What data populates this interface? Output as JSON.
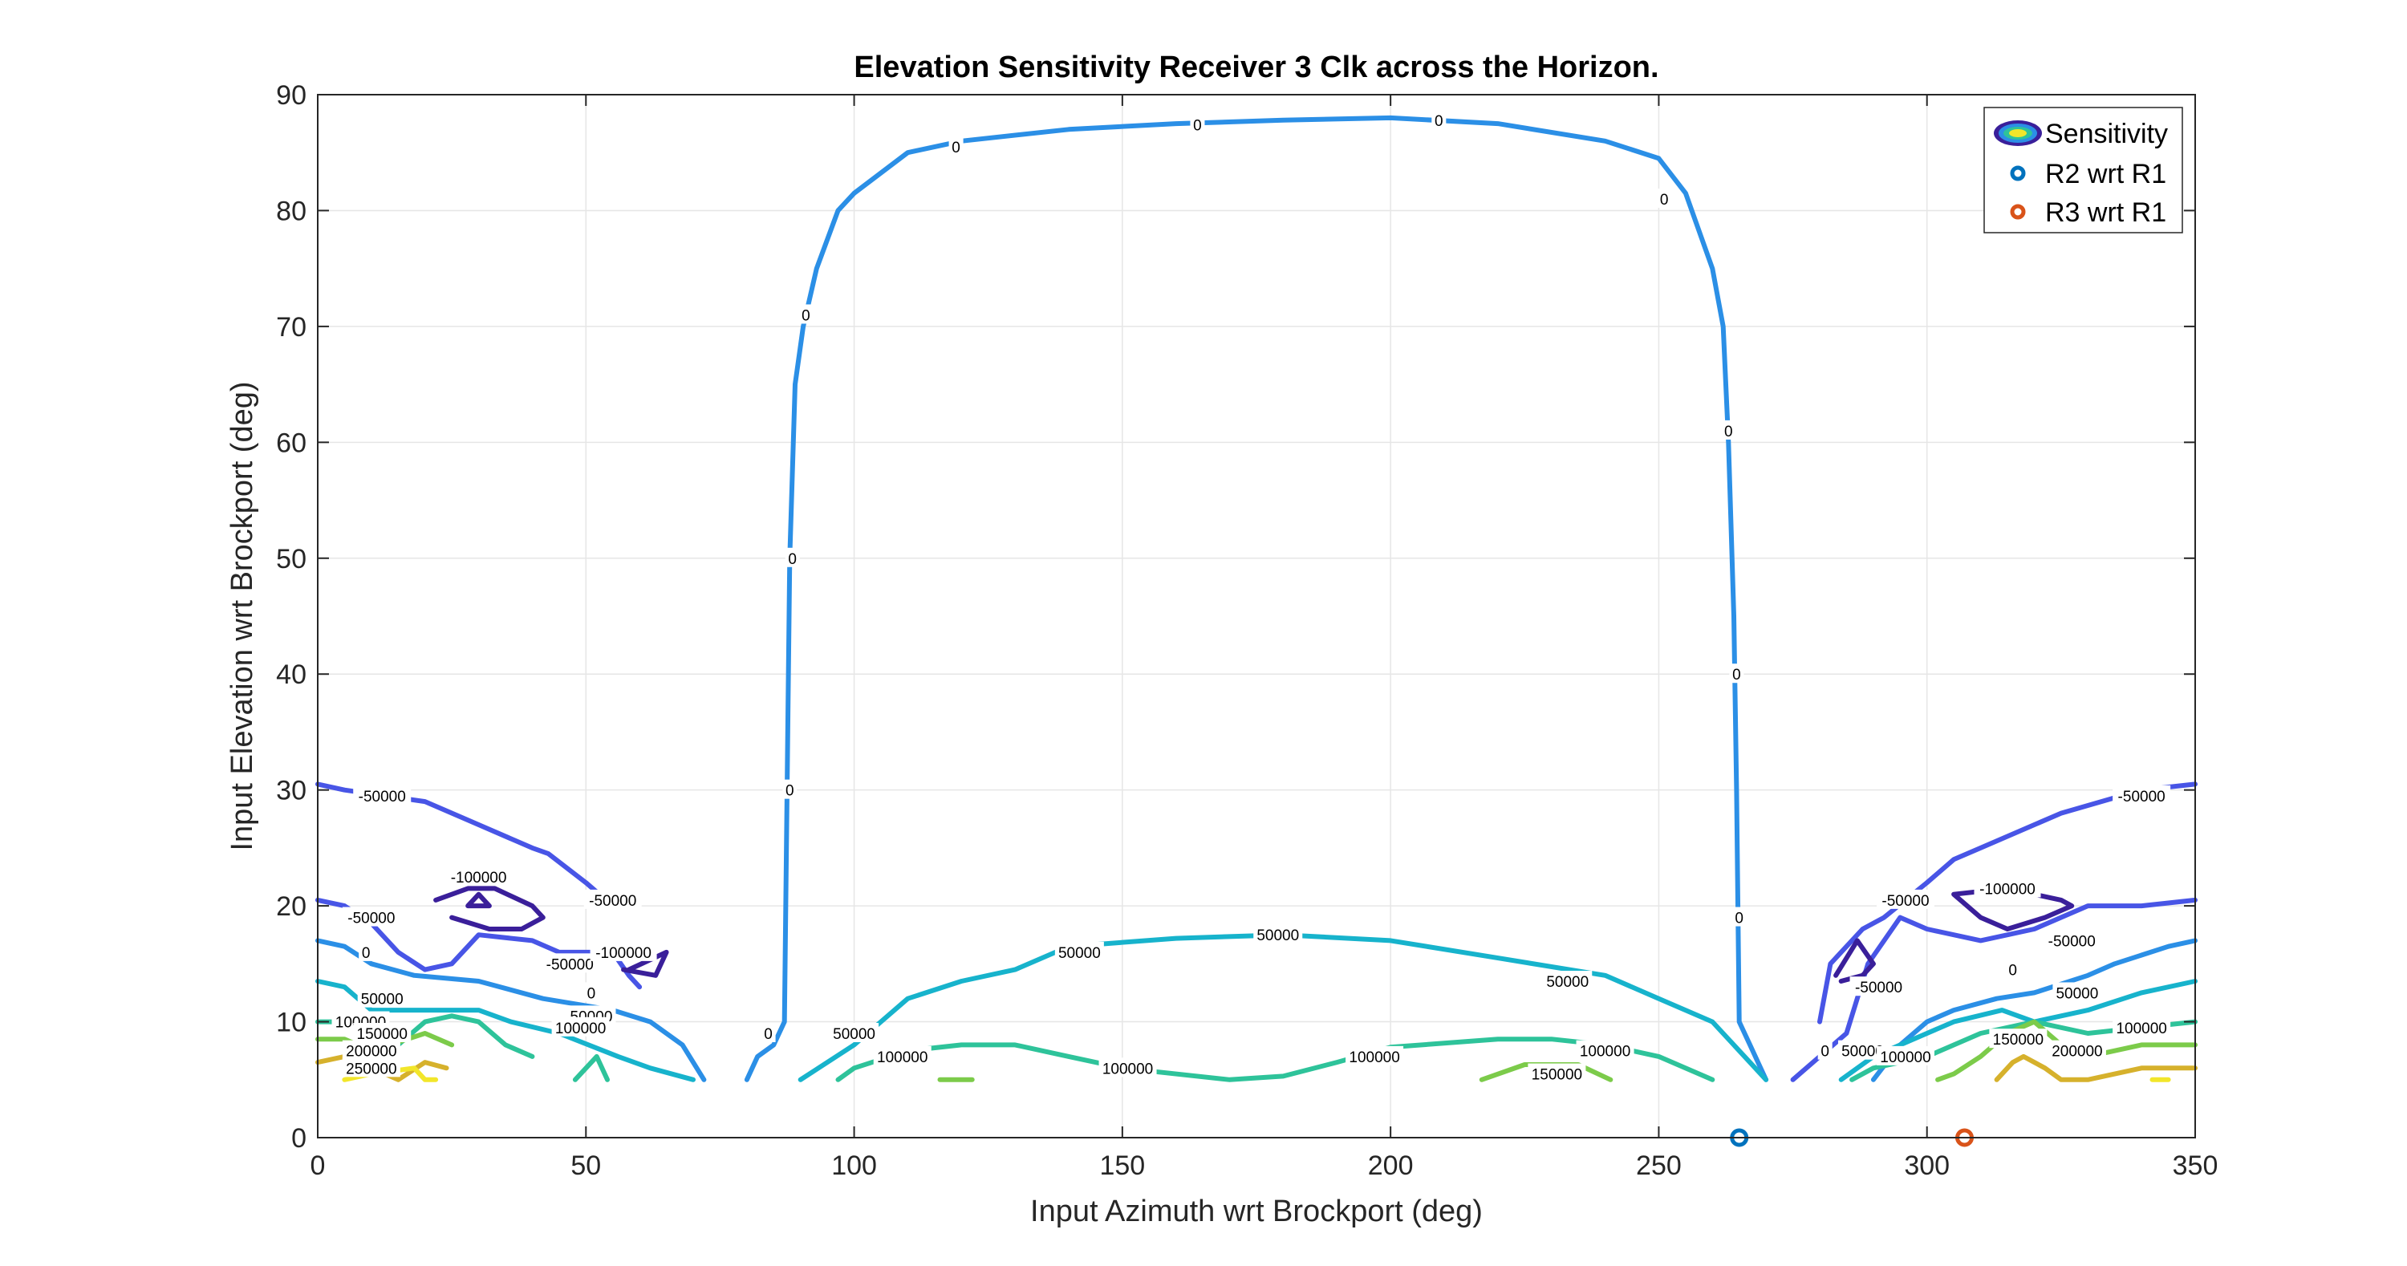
{
  "chart_data": {
    "type": "contour",
    "title": "Elevation Sensitivity Receiver 3 Clk across the Horizon.",
    "xlabel": "Input Azimuth wrt Brockport (deg)",
    "ylabel": "Input Elevation wrt Brockport (deg)",
    "xlim": [
      0,
      350
    ],
    "ylim": [
      0,
      90
    ],
    "xticks": [
      0,
      50,
      100,
      150,
      200,
      250,
      300,
      350
    ],
    "yticks": [
      0,
      10,
      20,
      30,
      40,
      50,
      60,
      70,
      80,
      90
    ],
    "grid": true,
    "legend": {
      "position": "top-right",
      "entries": [
        "Sensitivity",
        "R2 wrt R1",
        "R3 wrt R1"
      ]
    },
    "level_colors": {
      "-100000": "#3a1f9a",
      "-50000": "#4855e6",
      "0": "#2b8fe6",
      "50000": "#17b3cc",
      "100000": "#2ec39a",
      "150000": "#7ccb4a",
      "200000": "#d6b12c",
      "250000": "#f2e62a"
    },
    "contours": [
      {
        "level": 0,
        "points": [
          [
            80,
            5
          ],
          [
            82,
            7
          ],
          [
            85,
            8
          ],
          [
            87,
            10
          ],
          [
            87.5,
            30
          ],
          [
            88,
            50
          ],
          [
            89,
            65
          ],
          [
            90.5,
            70
          ],
          [
            93,
            75
          ],
          [
            97,
            80
          ],
          [
            100,
            81.5
          ],
          [
            110,
            85
          ],
          [
            120,
            86
          ],
          [
            140,
            87
          ],
          [
            160,
            87.5
          ],
          [
            180,
            87.8
          ],
          [
            200,
            88
          ],
          [
            220,
            87.5
          ],
          [
            240,
            86
          ],
          [
            250,
            84.5
          ],
          [
            255,
            81.5
          ],
          [
            260,
            75
          ],
          [
            262,
            70
          ],
          [
            263,
            60
          ],
          [
            264,
            45
          ],
          [
            264.5,
            30
          ],
          [
            265,
            10
          ],
          [
            267,
            8
          ],
          [
            270,
            5
          ]
        ]
      },
      {
        "level": 50000,
        "points": [
          [
            90,
            5
          ],
          [
            100,
            8
          ],
          [
            110,
            12
          ],
          [
            120,
            13.5
          ],
          [
            130,
            14.5
          ],
          [
            140,
            16.5
          ],
          [
            160,
            17.2
          ],
          [
            180,
            17.5
          ],
          [
            200,
            17
          ],
          [
            220,
            15.5
          ],
          [
            240,
            14
          ],
          [
            250,
            12
          ],
          [
            260,
            10
          ],
          [
            270,
            5
          ]
        ]
      },
      {
        "level": 100000,
        "points": [
          [
            97,
            5
          ],
          [
            100,
            6
          ],
          [
            110,
            7.5
          ],
          [
            120,
            8
          ],
          [
            130,
            8
          ],
          [
            140,
            7
          ],
          [
            150,
            6
          ],
          [
            170,
            5
          ],
          [
            180,
            5.3
          ],
          [
            190,
            6.5
          ],
          [
            200,
            7.8
          ],
          [
            220,
            8.5
          ],
          [
            230,
            8.5
          ],
          [
            240,
            8
          ],
          [
            250,
            7
          ],
          [
            260,
            5
          ]
        ]
      },
      {
        "level": 150000,
        "points": [
          [
            116,
            5
          ],
          [
            122,
            5
          ]
        ]
      },
      {
        "level": 150000,
        "points": [
          [
            217,
            5
          ],
          [
            225,
            6.3
          ],
          [
            235,
            6.3
          ],
          [
            241,
            5
          ]
        ]
      },
      {
        "level": -50000,
        "points": [
          [
            0,
            30.5
          ],
          [
            5,
            30
          ],
          [
            20,
            29
          ],
          [
            30,
            27
          ],
          [
            40,
            25
          ],
          [
            43,
            24.5
          ],
          [
            50,
            22
          ],
          [
            55,
            20
          ]
        ]
      },
      {
        "level": -50000,
        "points": [
          [
            0,
            20.5
          ],
          [
            5,
            20
          ],
          [
            10,
            18.5
          ],
          [
            15,
            16
          ],
          [
            20,
            14.5
          ],
          [
            25,
            15
          ],
          [
            30,
            17.5
          ],
          [
            40,
            17
          ],
          [
            45,
            16
          ],
          [
            55,
            16
          ],
          [
            58,
            14
          ],
          [
            60,
            13
          ]
        ]
      },
      {
        "level": 0,
        "points": [
          [
            0,
            17
          ],
          [
            5,
            16.5
          ],
          [
            10,
            15
          ],
          [
            18,
            14
          ],
          [
            30,
            13.5
          ],
          [
            42,
            12
          ],
          [
            55,
            11
          ],
          [
            62,
            10
          ],
          [
            68,
            8
          ],
          [
            72,
            5
          ]
        ]
      },
      {
        "level": 50000,
        "points": [
          [
            0,
            13.5
          ],
          [
            5,
            13
          ],
          [
            10,
            11
          ],
          [
            30,
            11
          ],
          [
            36,
            10
          ],
          [
            45,
            9
          ],
          [
            56,
            7
          ],
          [
            62,
            6
          ],
          [
            70,
            5
          ]
        ]
      },
      {
        "level": 100000,
        "points": [
          [
            0,
            10
          ],
          [
            5,
            10
          ],
          [
            10,
            9
          ],
          [
            15,
            8
          ],
          [
            20,
            10
          ],
          [
            25,
            10.5
          ],
          [
            30,
            10
          ],
          [
            35,
            8
          ],
          [
            40,
            7
          ]
        ]
      },
      {
        "level": 100000,
        "points": [
          [
            48,
            5
          ],
          [
            52,
            7
          ],
          [
            54,
            5
          ]
        ]
      },
      {
        "level": 150000,
        "points": [
          [
            0,
            8.5
          ],
          [
            5,
            8.5
          ],
          [
            10,
            7.5
          ],
          [
            20,
            9
          ],
          [
            25,
            8
          ]
        ]
      },
      {
        "level": 200000,
        "points": [
          [
            0,
            6.5
          ],
          [
            5,
            7
          ],
          [
            10,
            6
          ],
          [
            15,
            5
          ],
          [
            20,
            6.5
          ],
          [
            24,
            6
          ]
        ]
      },
      {
        "level": 250000,
        "points": [
          [
            5,
            5
          ],
          [
            10,
            5.5
          ],
          [
            18,
            6
          ],
          [
            20,
            5
          ],
          [
            22,
            5
          ]
        ]
      },
      {
        "level": -100000,
        "points": [
          [
            28,
            20
          ],
          [
            30,
            21
          ],
          [
            32,
            20
          ],
          [
            28,
            20
          ]
        ]
      },
      {
        "level": -100000,
        "points": [
          [
            22,
            20.5
          ],
          [
            28,
            21.5
          ],
          [
            33,
            21.5
          ],
          [
            40,
            20
          ],
          [
            42,
            19
          ],
          [
            38,
            18
          ],
          [
            32,
            18
          ],
          [
            25,
            19
          ]
        ]
      },
      {
        "level": -100000,
        "points": [
          [
            57,
            14.5
          ],
          [
            63,
            14
          ],
          [
            65,
            16
          ],
          [
            58,
            14.5
          ]
        ]
      },
      {
        "level": 0,
        "points": [
          [
            290,
            5
          ],
          [
            295,
            8
          ],
          [
            300,
            10
          ],
          [
            305,
            11
          ],
          [
            313,
            12
          ],
          [
            320,
            12.5
          ],
          [
            330,
            14
          ],
          [
            335,
            15
          ],
          [
            345,
            16.5
          ],
          [
            350,
            17
          ]
        ]
      },
      {
        "level": 50000,
        "points": [
          [
            284,
            5
          ],
          [
            290,
            7
          ],
          [
            300,
            9
          ],
          [
            305,
            10
          ],
          [
            314,
            11
          ],
          [
            320,
            10
          ],
          [
            330,
            11
          ],
          [
            340,
            12.5
          ],
          [
            350,
            13.5
          ]
        ]
      },
      {
        "level": 100000,
        "points": [
          [
            286,
            5
          ],
          [
            290,
            6
          ],
          [
            300,
            7
          ],
          [
            310,
            9
          ],
          [
            320,
            10
          ],
          [
            330,
            9
          ],
          [
            340,
            9.5
          ],
          [
            350,
            10
          ]
        ]
      },
      {
        "level": 150000,
        "points": [
          [
            302,
            5
          ],
          [
            305,
            5.5
          ],
          [
            310,
            7
          ],
          [
            315,
            9
          ],
          [
            320,
            10
          ],
          [
            325,
            8
          ],
          [
            330,
            7
          ],
          [
            340,
            8
          ],
          [
            350,
            8
          ]
        ]
      },
      {
        "level": 200000,
        "points": [
          [
            313,
            5
          ],
          [
            316,
            6.5
          ],
          [
            318,
            7
          ],
          [
            322,
            6
          ],
          [
            325,
            5
          ],
          [
            330,
            5
          ],
          [
            340,
            6
          ],
          [
            350,
            6
          ]
        ]
      },
      {
        "level": 250000,
        "points": [
          [
            342,
            5
          ],
          [
            345,
            5
          ]
        ]
      },
      {
        "level": -50000,
        "points": [
          [
            280,
            10
          ],
          [
            282,
            15
          ],
          [
            288,
            18
          ],
          [
            292,
            19
          ],
          [
            300,
            22
          ],
          [
            305,
            24
          ],
          [
            310,
            25
          ],
          [
            325,
            28
          ],
          [
            340,
            30
          ],
          [
            350,
            30.5
          ]
        ]
      },
      {
        "level": -50000,
        "points": [
          [
            275,
            5
          ],
          [
            280,
            7
          ],
          [
            285,
            9
          ],
          [
            289,
            15
          ],
          [
            295,
            19
          ],
          [
            300,
            18
          ],
          [
            310,
            17
          ],
          [
            320,
            18
          ],
          [
            330,
            20
          ],
          [
            340,
            20
          ],
          [
            350,
            20.5
          ]
        ]
      },
      {
        "level": -100000,
        "points": [
          [
            283,
            14
          ],
          [
            287,
            17
          ],
          [
            290,
            15
          ],
          [
            288,
            14
          ],
          [
            284,
            13.5
          ]
        ]
      },
      {
        "level": -100000,
        "points": [
          [
            305,
            21
          ],
          [
            315,
            21.5
          ],
          [
            325,
            20.5
          ],
          [
            327,
            20
          ],
          [
            322,
            19
          ],
          [
            315,
            18
          ],
          [
            310,
            19
          ],
          [
            305,
            21
          ]
        ]
      }
    ],
    "contour_labels": [
      {
        "text": "0",
        "x": 88,
        "y": 30
      },
      {
        "text": "0",
        "x": 88.5,
        "y": 50
      },
      {
        "text": "0",
        "x": 91,
        "y": 71
      },
      {
        "text": "0",
        "x": 119,
        "y": 85.5
      },
      {
        "text": "0",
        "x": 164,
        "y": 87.4
      },
      {
        "text": "0",
        "x": 209,
        "y": 87.8
      },
      {
        "text": "0",
        "x": 251,
        "y": 81
      },
      {
        "text": "0",
        "x": 263,
        "y": 61
      },
      {
        "text": "0",
        "x": 264.5,
        "y": 40
      },
      {
        "text": "0",
        "x": 265,
        "y": 19
      },
      {
        "text": "0",
        "x": 84,
        "y": 9
      },
      {
        "text": "50000",
        "x": 179,
        "y": 17.5
      },
      {
        "text": "50000",
        "x": 142,
        "y": 16
      },
      {
        "text": "50000",
        "x": 233,
        "y": 13.5
      },
      {
        "text": "50000",
        "x": 100,
        "y": 9
      },
      {
        "text": "100000",
        "x": 151,
        "y": 6
      },
      {
        "text": "100000",
        "x": 197,
        "y": 7
      },
      {
        "text": "100000",
        "x": 240,
        "y": 7.5
      },
      {
        "text": "100000",
        "x": 109,
        "y": 7
      },
      {
        "text": "150000",
        "x": 231,
        "y": 5.5
      },
      {
        "text": "-50000",
        "x": 12,
        "y": 29.5
      },
      {
        "text": "-50000",
        "x": 55,
        "y": 20.5
      },
      {
        "text": "-50000",
        "x": 10,
        "y": 19
      },
      {
        "text": "-50000",
        "x": 47,
        "y": 15
      },
      {
        "text": "-100000",
        "x": 30,
        "y": 22.5
      },
      {
        "text": "-100000",
        "x": 57,
        "y": 16
      },
      {
        "text": "0",
        "x": 9,
        "y": 16
      },
      {
        "text": "0",
        "x": 51,
        "y": 12.5
      },
      {
        "text": "50000",
        "x": 12,
        "y": 12
      },
      {
        "text": "50000",
        "x": 51,
        "y": 10.5
      },
      {
        "text": "100000",
        "x": 8,
        "y": 10
      },
      {
        "text": "100000",
        "x": 49,
        "y": 9.5
      },
      {
        "text": "150000",
        "x": 12,
        "y": 9
      },
      {
        "text": "200000",
        "x": 10,
        "y": 7.5
      },
      {
        "text": "250000",
        "x": 10,
        "y": 6
      },
      {
        "text": "-50000",
        "x": 340,
        "y": 29.5
      },
      {
        "text": "-50000",
        "x": 296,
        "y": 20.5
      },
      {
        "text": "-50000",
        "x": 327,
        "y": 17
      },
      {
        "text": "-50000",
        "x": 291,
        "y": 13
      },
      {
        "text": "-100000",
        "x": 315,
        "y": 21.5
      },
      {
        "text": "0",
        "x": 281,
        "y": 7.5
      },
      {
        "text": "0",
        "x": 316,
        "y": 14.5
      },
      {
        "text": "50000",
        "x": 288,
        "y": 7.5
      },
      {
        "text": "50000",
        "x": 328,
        "y": 12.5
      },
      {
        "text": "100000",
        "x": 296,
        "y": 7
      },
      {
        "text": "100000",
        "x": 340,
        "y": 9.5
      },
      {
        "text": "150000",
        "x": 317,
        "y": 8.5
      },
      {
        "text": "200000",
        "x": 328,
        "y": 7.5
      }
    ],
    "markers": [
      {
        "name": "R2 wrt R1",
        "x": 265,
        "y": 0,
        "color": "#0072bd"
      },
      {
        "name": "R3 wrt R1",
        "x": 307,
        "y": 0,
        "color": "#d95319"
      }
    ]
  }
}
